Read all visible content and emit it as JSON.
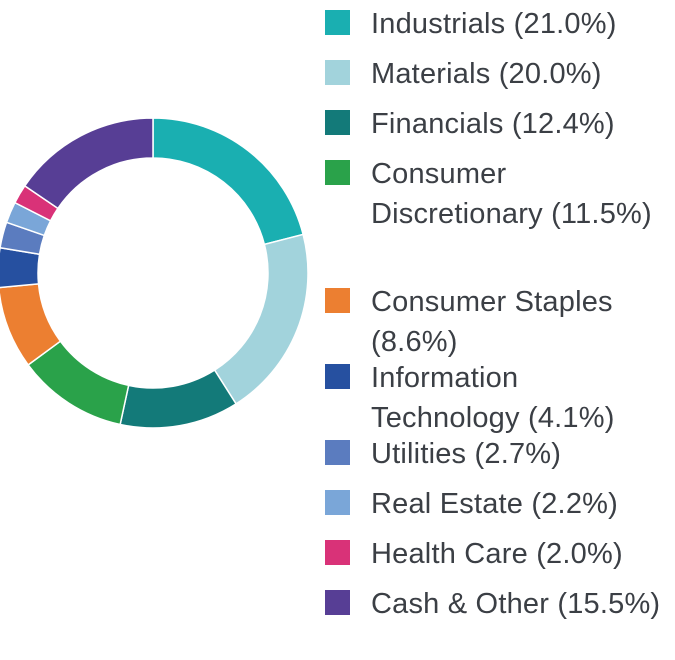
{
  "chart_data": {
    "type": "pie",
    "style": "donut",
    "legend_position": "right",
    "slices": [
      {
        "label": "Industrials (21.0%)",
        "value": 21.0,
        "color": "#1aafb1"
      },
      {
        "label": "Materials (20.0%)",
        "value": 20.0,
        "color": "#a2d3dc"
      },
      {
        "label": "Financials (12.4%)",
        "value": 12.4,
        "color": "#137a79"
      },
      {
        "label": "Consumer Discretionary (11.5%)",
        "value": 11.5,
        "color": "#2aa24a"
      },
      {
        "label": "Consumer Staples (8.6%)",
        "value": 8.6,
        "color": "#ec7f31"
      },
      {
        "label": "Information Technology (4.1%)",
        "value": 4.1,
        "color": "#2650a0"
      },
      {
        "label": "Utilities (2.7%)",
        "value": 2.7,
        "color": "#5b7cbf"
      },
      {
        "label": "Real Estate (2.2%)",
        "value": 2.2,
        "color": "#7aa6d8"
      },
      {
        "label": "Health Care (2.0%)",
        "value": 2.0,
        "color": "#d93278"
      },
      {
        "label": "Cash & Other (15.5%)",
        "value": 15.5,
        "color": "#573e95"
      }
    ]
  }
}
